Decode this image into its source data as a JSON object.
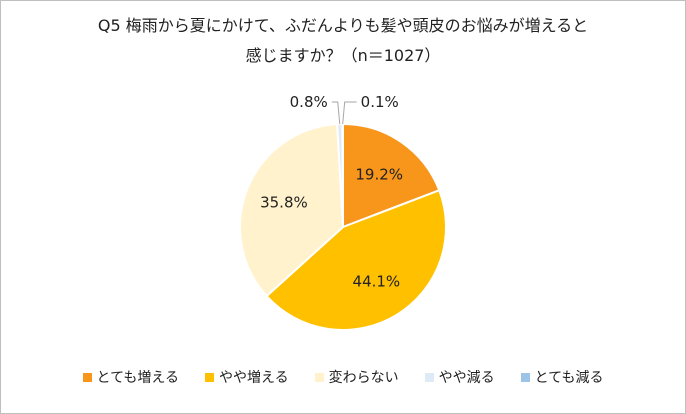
{
  "chart_data": {
    "type": "pie",
    "title_line1": "Q5 梅雨から夏にかけて、ふだんよりも髪や頭皮のお悩みが増えると",
    "title_line2": "感じますか？（n＝1027）",
    "categories": [
      "とても増える",
      "やや増える",
      "変わらない",
      "やや減る",
      "とても減る"
    ],
    "values": [
      19.2,
      44.1,
      35.8,
      0.8,
      0.1
    ],
    "labels": [
      "19.2%",
      "44.1%",
      "35.8%",
      "0.8%",
      "0.1%"
    ],
    "colors": [
      "#f7961b",
      "#ffc000",
      "#fff2cc",
      "#deebf7",
      "#9dc3e6"
    ],
    "legend_position": "bottom"
  }
}
